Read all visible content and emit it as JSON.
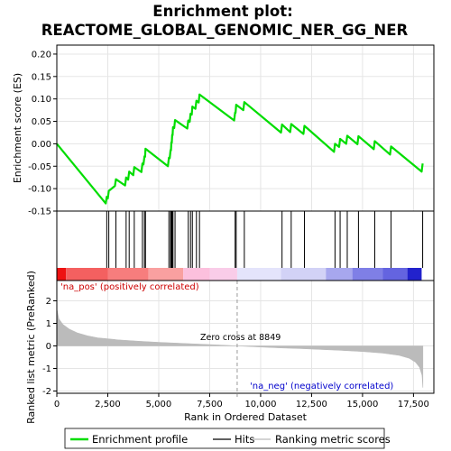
{
  "chart_data": {
    "type": "line",
    "title_line1": "Enrichment plot:",
    "title_line2": "REACTOME_GLOBAL_GENOMIC_NER_GG_NER",
    "es_ylabel": "Enrichment score (ES)",
    "metric_ylabel": "Ranked list metric (PreRanked)",
    "xlabel": "Rank in Ordered Dataset",
    "xlim": [
      0,
      18500
    ],
    "es_ylim": [
      -0.15,
      0.22
    ],
    "metric_ylim": [
      -2.1,
      2.9
    ],
    "x_ticks": [
      0,
      2500,
      5000,
      7500,
      10000,
      12500,
      15000,
      17500
    ],
    "x_tick_labels": [
      "0",
      "2,500",
      "5,000",
      "7,500",
      "10,000",
      "12,500",
      "15,000",
      "17,500"
    ],
    "es_ticks": [
      -0.15,
      -0.1,
      -0.05,
      0.0,
      0.05,
      0.1,
      0.15,
      0.2
    ],
    "es_tick_labels": [
      "-0.15",
      "-0.10",
      "-0.05",
      "0.00",
      "0.05",
      "0.10",
      "0.15",
      "0.20"
    ],
    "metric_ticks": [
      -2,
      -1,
      0,
      1,
      2
    ],
    "metric_tick_labels": [
      "-2",
      "-1",
      "0",
      "1",
      "2"
    ],
    "hits": [
      2450,
      2550,
      2900,
      3400,
      3550,
      3800,
      4200,
      4300,
      4350,
      5500,
      5580,
      5620,
      5660,
      5700,
      5800,
      6450,
      6560,
      6650,
      6850,
      7000,
      8750,
      8800,
      9200,
      11050,
      11500,
      12150,
      13650,
      13900,
      14250,
      14800,
      15600,
      16400,
      17950
    ],
    "es_profile": [
      [
        0,
        0.0
      ],
      [
        2400,
        -0.133
      ],
      [
        2450,
        -0.118
      ],
      [
        2500,
        -0.122
      ],
      [
        2550,
        -0.105
      ],
      [
        2850,
        -0.094
      ],
      [
        2900,
        -0.079
      ],
      [
        3350,
        -0.093
      ],
      [
        3400,
        -0.075
      ],
      [
        3500,
        -0.08
      ],
      [
        3550,
        -0.062
      ],
      [
        3750,
        -0.07
      ],
      [
        3800,
        -0.052
      ],
      [
        4150,
        -0.063
      ],
      [
        4200,
        -0.044
      ],
      [
        4250,
        -0.046
      ],
      [
        4300,
        -0.028
      ],
      [
        4330,
        -0.029
      ],
      [
        4350,
        -0.011
      ],
      [
        5450,
        -0.05
      ],
      [
        5500,
        -0.031
      ],
      [
        5540,
        -0.032
      ],
      [
        5580,
        -0.014
      ],
      [
        5600,
        -0.015
      ],
      [
        5620,
        0.003
      ],
      [
        5640,
        0.002
      ],
      [
        5660,
        0.02
      ],
      [
        5680,
        0.019
      ],
      [
        5700,
        0.037
      ],
      [
        5760,
        0.035
      ],
      [
        5800,
        0.053
      ],
      [
        6400,
        0.034
      ],
      [
        6450,
        0.052
      ],
      [
        6520,
        0.049
      ],
      [
        6560,
        0.067
      ],
      [
        6620,
        0.065
      ],
      [
        6650,
        0.083
      ],
      [
        6800,
        0.078
      ],
      [
        6850,
        0.096
      ],
      [
        6960,
        0.092
      ],
      [
        7000,
        0.11
      ],
      [
        8700,
        0.052
      ],
      [
        8750,
        0.07
      ],
      [
        8770,
        0.069
      ],
      [
        8800,
        0.087
      ],
      [
        9150,
        0.075
      ],
      [
        9200,
        0.093
      ],
      [
        11000,
        0.025
      ],
      [
        11050,
        0.043
      ],
      [
        11450,
        0.026
      ],
      [
        11500,
        0.044
      ],
      [
        12100,
        0.022
      ],
      [
        12150,
        0.04
      ],
      [
        13600,
        -0.018
      ],
      [
        13650,
        0.0
      ],
      [
        13850,
        -0.007
      ],
      [
        13900,
        0.011
      ],
      [
        14200,
        0.0
      ],
      [
        14250,
        0.018
      ],
      [
        14750,
        -0.001
      ],
      [
        14800,
        0.017
      ],
      [
        15550,
        -0.012
      ],
      [
        15600,
        0.006
      ],
      [
        16350,
        -0.024
      ],
      [
        16400,
        -0.006
      ],
      [
        17900,
        -0.062
      ],
      [
        17950,
        -0.044
      ]
    ],
    "es_scale": [
      0.205,
      0.167
    ],
    "metric_profile": [
      [
        0,
        1.65
      ],
      [
        100,
        1.2
      ],
      [
        300,
        0.95
      ],
      [
        600,
        0.75
      ],
      [
        1000,
        0.58
      ],
      [
        1500,
        0.45
      ],
      [
        2000,
        0.36
      ],
      [
        3000,
        0.27
      ],
      [
        4000,
        0.21
      ],
      [
        5000,
        0.16
      ],
      [
        6000,
        0.12
      ],
      [
        7000,
        0.08
      ],
      [
        8000,
        0.04
      ],
      [
        8849,
        0.0
      ],
      [
        10000,
        -0.05
      ],
      [
        11000,
        -0.09
      ],
      [
        12000,
        -0.12
      ],
      [
        13000,
        -0.16
      ],
      [
        14000,
        -0.2
      ],
      [
        15000,
        -0.25
      ],
      [
        16000,
        -0.32
      ],
      [
        16800,
        -0.42
      ],
      [
        17300,
        -0.55
      ],
      [
        17600,
        -0.72
      ],
      [
        17800,
        -0.95
      ],
      [
        17920,
        -1.3
      ],
      [
        17960,
        -1.85
      ]
    ],
    "band_segments": [
      {
        "x0": 0,
        "x1": 450,
        "color": "#ee1111"
      },
      {
        "x0": 450,
        "x1": 2500,
        "color": "#f46060"
      },
      {
        "x0": 2500,
        "x1": 4500,
        "color": "#f77d7d"
      },
      {
        "x0": 4500,
        "x1": 6200,
        "color": "#f9a0a0"
      },
      {
        "x0": 6200,
        "x1": 7500,
        "color": "#fcc0dd"
      },
      {
        "x0": 7500,
        "x1": 8849,
        "color": "#f9cce8"
      },
      {
        "x0": 8849,
        "x1": 11000,
        "color": "#e4e4fb"
      },
      {
        "x0": 11000,
        "x1": 13200,
        "color": "#d2d2f6"
      },
      {
        "x0": 13200,
        "x1": 14500,
        "color": "#a7a7ee"
      },
      {
        "x0": 14500,
        "x1": 16000,
        "color": "#7f7fe6"
      },
      {
        "x0": 16000,
        "x1": 17200,
        "color": "#6464e0"
      },
      {
        "x0": 17200,
        "x1": 17900,
        "color": "#2222cc"
      }
    ],
    "zero_cross_label": "Zero cross at 8849",
    "zero_cross_rank": 8849,
    "pos_label": "'na_pos' (positively correlated)",
    "neg_label": "'na_neg' (negatively correlated)",
    "legend": [
      {
        "label": "Enrichment profile",
        "color": "#00dd00"
      },
      {
        "label": "Hits",
        "color": "#000000"
      },
      {
        "label": "Ranking metric scores",
        "color": "#bbbbbb"
      }
    ],
    "colors": {
      "profile": "#00dd00",
      "hits": "#000000",
      "metric": "#bbbbbb",
      "grid": "#e5e5e5"
    }
  }
}
